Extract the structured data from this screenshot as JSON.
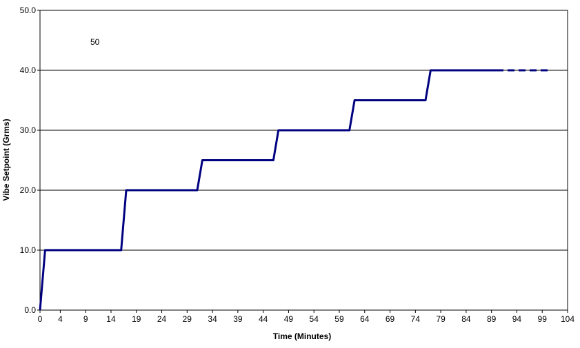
{
  "chart_data": {
    "type": "line",
    "title": "",
    "xlabel": "Time (Minutes)",
    "ylabel": "Vibe Setpoint (Grms)",
    "annotation": "50",
    "xlim": [
      0,
      104
    ],
    "ylim": [
      0,
      50
    ],
    "x_ticks": [
      "0",
      "4",
      "9",
      "14",
      "19",
      "24",
      "29",
      "34",
      "39",
      "44",
      "49",
      "54",
      "59",
      "64",
      "69",
      "74",
      "79",
      "84",
      "89",
      "94",
      "99",
      "104"
    ],
    "y_ticks": [
      "0.0",
      "10.0",
      "20.0",
      "30.0",
      "40.0",
      "50.0"
    ],
    "grid": "horizontal",
    "line_color": "#000080",
    "series": [
      {
        "style": "solid",
        "x": [
          0,
          1,
          16,
          17,
          31,
          32,
          46,
          47,
          61,
          62,
          76,
          77,
          90
        ],
        "y": [
          0,
          10,
          10,
          20,
          20,
          25,
          25,
          30,
          30,
          35,
          35,
          40,
          40
        ]
      },
      {
        "style": "dashed",
        "x": [
          90,
          100.5
        ],
        "y": [
          40,
          40
        ]
      }
    ]
  }
}
